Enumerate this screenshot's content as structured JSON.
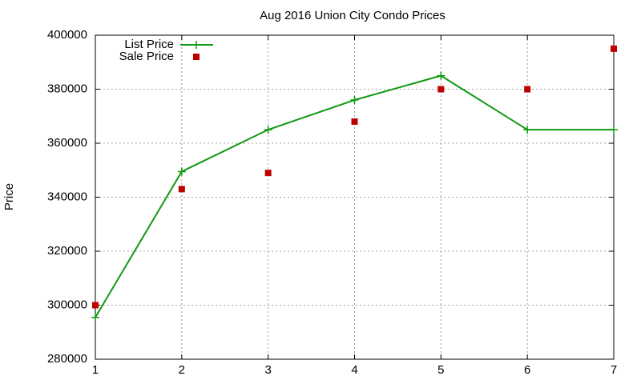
{
  "chart_data": {
    "type": "line",
    "title": "Aug 2016 Union City Condo Prices",
    "y_label": "Price",
    "x": [
      1,
      2,
      3,
      4,
      5,
      6,
      7
    ],
    "series": [
      {
        "name": "List Price",
        "color": "#109910",
        "mode": "lines+points",
        "values": [
          295500,
          349500,
          365000,
          376000,
          385000,
          365000,
          365000
        ]
      },
      {
        "name": "Sale Price",
        "color": "#c00000",
        "mode": "points",
        "values": [
          300000,
          343000,
          349000,
          368000,
          380000,
          380000,
          395000
        ]
      }
    ],
    "xlim": [
      1,
      7
    ],
    "xticks": [
      1,
      2,
      3,
      4,
      5,
      6,
      7
    ],
    "ylim": [
      280000,
      400000
    ],
    "yticks": [
      280000,
      300000,
      320000,
      340000,
      360000,
      380000,
      400000
    ],
    "grid": true,
    "legend": "top-left"
  }
}
